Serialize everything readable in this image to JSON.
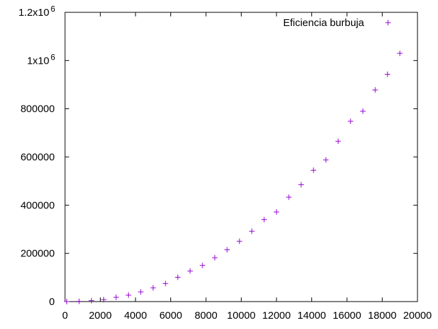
{
  "chart_data": {
    "type": "scatter",
    "title": "",
    "xlabel": "",
    "ylabel": "",
    "xlim": [
      0,
      20000
    ],
    "ylim": [
      0,
      1200000
    ],
    "grid": false,
    "legend_position": "top-right",
    "marker": "plus",
    "x_ticks": [
      {
        "value": 0,
        "label": "0"
      },
      {
        "value": 2000,
        "label": "2000"
      },
      {
        "value": 4000,
        "label": "4000"
      },
      {
        "value": 6000,
        "label": "6000"
      },
      {
        "value": 8000,
        "label": "8000"
      },
      {
        "value": 10000,
        "label": "10000"
      },
      {
        "value": 12000,
        "label": "12000"
      },
      {
        "value": 14000,
        "label": "14000"
      },
      {
        "value": 16000,
        "label": "16000"
      },
      {
        "value": 18000,
        "label": "18000"
      },
      {
        "value": 20000,
        "label": "20000"
      }
    ],
    "y_ticks": [
      {
        "value": 0,
        "label": "0"
      },
      {
        "value": 200000,
        "label": "200000"
      },
      {
        "value": 400000,
        "label": "400000"
      },
      {
        "value": 600000,
        "label": "600000"
      },
      {
        "value": 800000,
        "label": "800000"
      },
      {
        "value": 1000000,
        "label": "1x10",
        "sup": "6"
      },
      {
        "value": 1200000,
        "label": "1.2x10",
        "sup": "6"
      }
    ],
    "series": [
      {
        "name": "Eficiencia burbuja",
        "color": "#9400d3",
        "x": [
          100,
          800,
          1500,
          2200,
          2900,
          3600,
          4300,
          5000,
          5700,
          6400,
          7100,
          7800,
          8500,
          9200,
          9900,
          10600,
          11300,
          12000,
          12700,
          13400,
          14100,
          14800,
          15500,
          16200,
          16900,
          17600,
          18300,
          19000
        ],
        "y": [
          0,
          1000,
          4000,
          8000,
          18000,
          27000,
          40000,
          57000,
          75000,
          101000,
          127000,
          150000,
          182000,
          215000,
          250000,
          292000,
          340000,
          372000,
          433000,
          485000,
          545000,
          588000,
          665000,
          748000,
          790000,
          878000,
          943000,
          1030000
        ]
      }
    ]
  }
}
